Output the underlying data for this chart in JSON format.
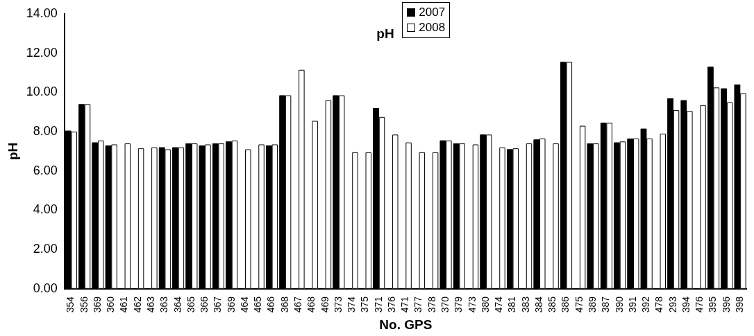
{
  "chart_data": {
    "type": "bar",
    "xlabel": "No. GPS",
    "ylabel": "pH",
    "legend_title": "pH",
    "categories": [
      "354",
      "356",
      "369",
      "360",
      "461",
      "462",
      "463",
      "363",
      "364",
      "365",
      "366",
      "367",
      "369",
      "464",
      "465",
      "466",
      "368",
      "467",
      "468",
      "469",
      "373",
      "374",
      "375",
      "371",
      "376",
      "471",
      "377",
      "378",
      "370",
      "379",
      "473",
      "380",
      "474",
      "381",
      "383",
      "384",
      "385",
      "386",
      "475",
      "389",
      "387",
      "390",
      "391",
      "392",
      "478",
      "293",
      "394",
      "476",
      "395",
      "396",
      "398"
    ],
    "series": [
      {
        "name": "2007",
        "color": "#000000",
        "values": [
          8.05,
          9.4,
          7.45,
          7.3,
          null,
          null,
          null,
          7.2,
          7.2,
          7.4,
          7.3,
          7.4,
          7.5,
          null,
          null,
          7.3,
          9.85,
          null,
          null,
          null,
          9.85,
          null,
          null,
          9.2,
          null,
          null,
          null,
          null,
          7.55,
          7.4,
          null,
          7.85,
          null,
          7.1,
          null,
          7.6,
          null,
          11.55,
          null,
          7.4,
          8.45,
          7.45,
          7.65,
          8.15,
          null,
          9.7,
          9.6,
          null,
          11.3,
          10.2,
          10.4
        ]
      },
      {
        "name": "2008",
        "color": "#ffffff",
        "values": [
          8.0,
          9.4,
          7.55,
          7.35,
          7.4,
          7.15,
          7.2,
          7.1,
          7.2,
          7.4,
          7.35,
          7.4,
          7.55,
          7.1,
          7.35,
          7.35,
          9.85,
          11.15,
          8.55,
          9.6,
          9.85,
          6.95,
          6.95,
          8.75,
          7.85,
          7.45,
          6.95,
          6.95,
          7.55,
          7.4,
          7.35,
          7.85,
          7.2,
          7.15,
          7.4,
          7.65,
          7.4,
          11.55,
          8.3,
          7.4,
          8.45,
          7.5,
          7.65,
          7.65,
          7.9,
          9.1,
          9.05,
          9.35,
          10.25,
          9.5,
          9.95
        ]
      }
    ],
    "ylim": [
      0,
      14
    ],
    "yticks": [
      {
        "value": 0,
        "label": "0.00"
      },
      {
        "value": 2,
        "label": "2.00"
      },
      {
        "value": 4,
        "label": "4.00"
      },
      {
        "value": 6,
        "label": "6.00"
      },
      {
        "value": 8,
        "label": "8.00"
      },
      {
        "value": 10,
        "label": "10.00"
      },
      {
        "value": 12,
        "label": "12.00"
      },
      {
        "value": 14,
        "label": "14.00"
      }
    ],
    "grid": false,
    "legend": "top"
  }
}
